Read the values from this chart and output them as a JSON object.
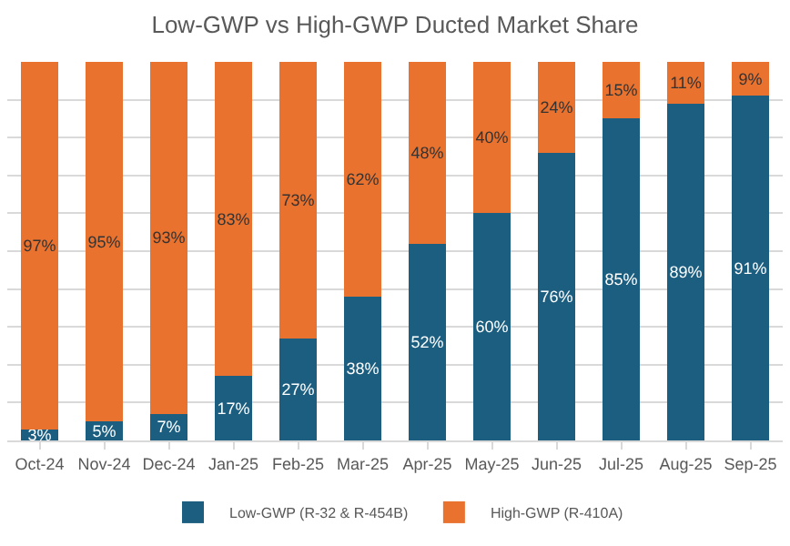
{
  "chart_data": {
    "type": "bar",
    "stacked": true,
    "title": "Low-GWP vs High-GWP Ducted Market Share",
    "categories": [
      "Oct-24",
      "Nov-24",
      "Dec-24",
      "Jan-25",
      "Feb-25",
      "Mar-25",
      "Apr-25",
      "May-25",
      "Jun-25",
      "Jul-25",
      "Aug-25",
      "Sep-25"
    ],
    "series": [
      {
        "name": "Low-GWP (R-32 & R-454B)",
        "color": "#1b5e80",
        "values": [
          3,
          5,
          7,
          17,
          27,
          38,
          52,
          60,
          76,
          85,
          89,
          91
        ],
        "value_labels": [
          "3%",
          "5%",
          "7%",
          "17%",
          "27%",
          "38%",
          "52%",
          "60%",
          "76%",
          "85%",
          "89%",
          "91%"
        ]
      },
      {
        "name": "High-GWP (R-410A)",
        "color": "#e9722e",
        "values": [
          97,
          95,
          93,
          83,
          73,
          62,
          48,
          40,
          24,
          15,
          11,
          9
        ],
        "value_labels": [
          "97%",
          "95%",
          "93%",
          "83%",
          "73%",
          "62%",
          "48%",
          "40%",
          "24%",
          "15%",
          "11%",
          "9%"
        ]
      }
    ],
    "ylim": [
      0,
      100
    ],
    "yticks": [
      {
        "value": 0,
        "label": null
      },
      {
        "value": 10,
        "label": null
      },
      {
        "value": 20,
        "label": null
      },
      {
        "value": 30,
        "label": null
      },
      {
        "value": 40,
        "label": null
      },
      {
        "value": 50,
        "label": null
      },
      {
        "value": 60,
        "label": null
      },
      {
        "value": 70,
        "label": null
      },
      {
        "value": 80,
        "label": null
      },
      {
        "value": 90,
        "label": null
      }
    ],
    "grid": "y",
    "tick_labels": "x",
    "legend": "bottom"
  }
}
